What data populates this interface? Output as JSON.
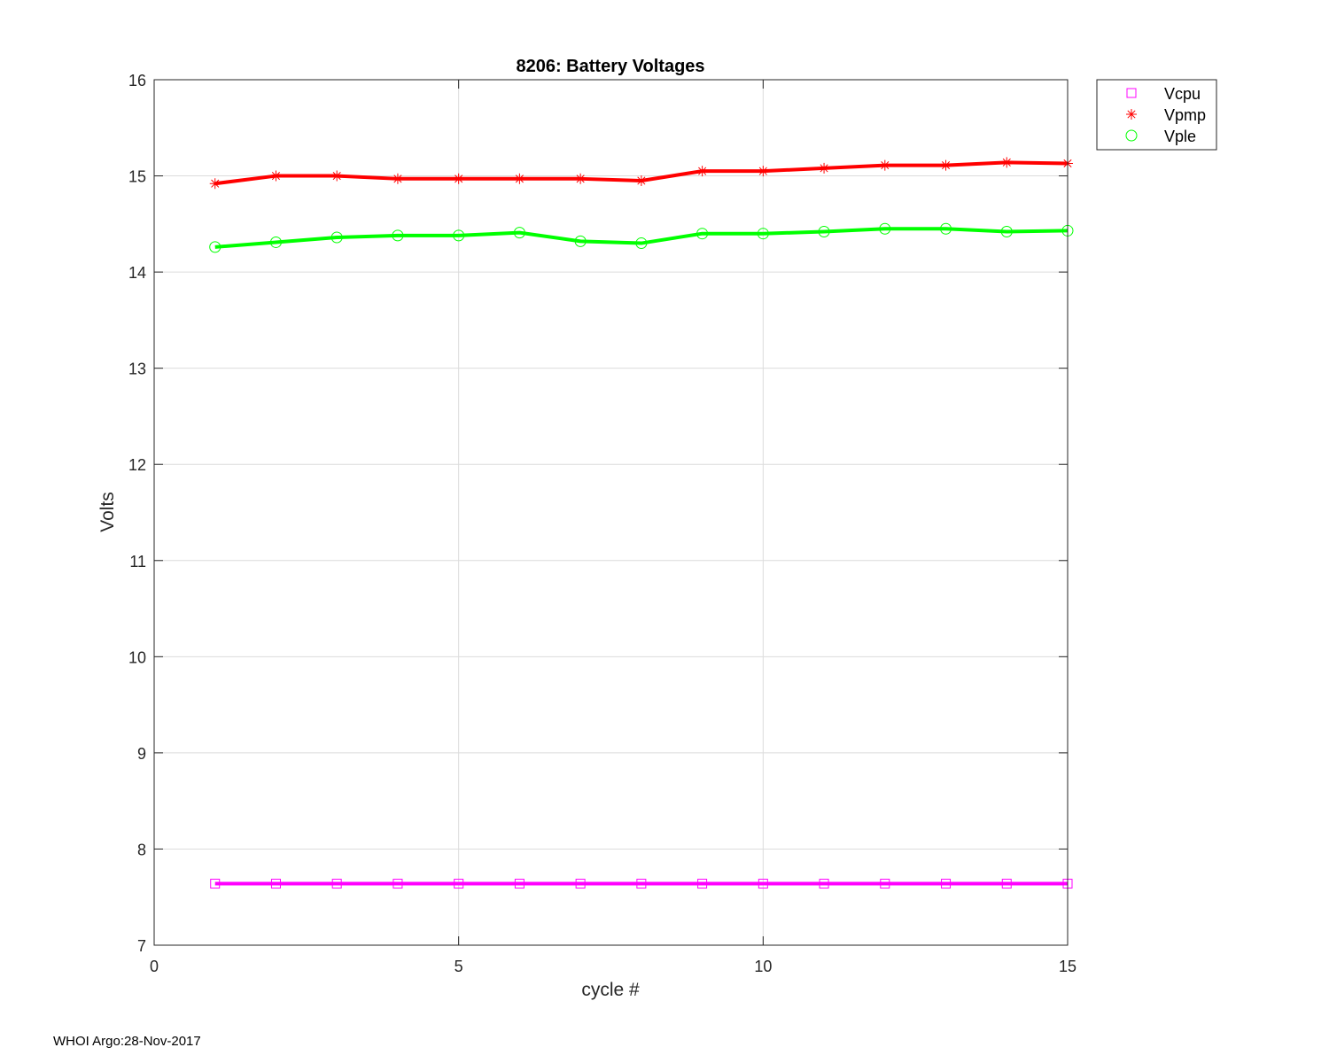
{
  "chart_data": {
    "type": "line",
    "title": "8206: Battery Voltages",
    "xlabel": "cycle #",
    "ylabel": "Volts",
    "xlim": [
      0,
      15
    ],
    "ylim": [
      7,
      16
    ],
    "xticks": [
      0,
      5,
      10,
      15
    ],
    "yticks": [
      7,
      8,
      9,
      10,
      11,
      12,
      13,
      14,
      15,
      16
    ],
    "grid": true,
    "legend_position": "outside top-right",
    "x": [
      1,
      2,
      3,
      4,
      5,
      6,
      7,
      8,
      9,
      10,
      11,
      12,
      13,
      14,
      15
    ],
    "series": [
      {
        "name": "Vcpu",
        "color": "#ff00ff",
        "marker": "square",
        "values": [
          7.64,
          7.64,
          7.64,
          7.64,
          7.64,
          7.64,
          7.64,
          7.64,
          7.64,
          7.64,
          7.64,
          7.64,
          7.64,
          7.64,
          7.64
        ]
      },
      {
        "name": "Vpmp",
        "color": "#ff0000",
        "marker": "asterisk",
        "values": [
          14.92,
          15.0,
          15.0,
          14.97,
          14.97,
          14.97,
          14.97,
          14.95,
          15.05,
          15.05,
          15.08,
          15.11,
          15.11,
          15.14,
          15.13
        ]
      },
      {
        "name": "Vple",
        "color": "#00ff00",
        "marker": "circle",
        "values": [
          14.26,
          14.31,
          14.36,
          14.38,
          14.38,
          14.41,
          14.32,
          14.3,
          14.4,
          14.4,
          14.42,
          14.45,
          14.45,
          14.42,
          14.43
        ]
      }
    ]
  },
  "footer": "WHOI Argo:28-Nov-2017"
}
